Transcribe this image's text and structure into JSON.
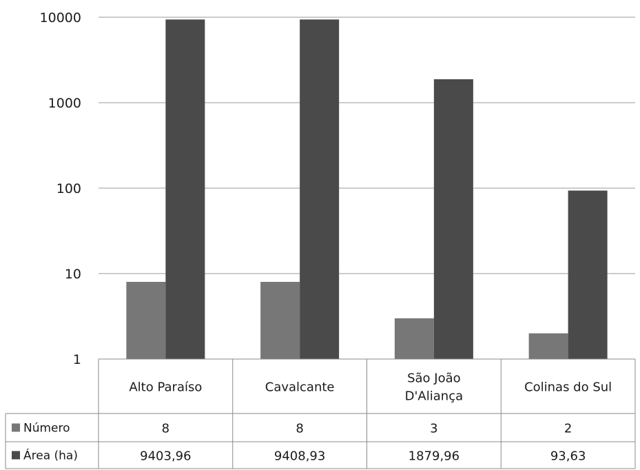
{
  "chart_data": {
    "type": "bar",
    "y_scale": "log",
    "ylim": [
      1,
      10000
    ],
    "yticks": [
      "1",
      "10",
      "100",
      "1000",
      "10000"
    ],
    "grid": true,
    "categories": [
      [
        "Alto Paraíso"
      ],
      [
        "Cavalcante"
      ],
      [
        "São João",
        "D'Aliança"
      ],
      [
        "Colinas do Sul"
      ]
    ],
    "series": [
      {
        "name": "Número",
        "color": "#777777",
        "values": [
          8,
          8,
          3,
          2
        ],
        "labels": [
          "8",
          "8",
          "3",
          "2"
        ]
      },
      {
        "name": "Área (ha)",
        "color": "#4a4a4a",
        "values": [
          9403.96,
          9408.93,
          1879.96,
          93.63
        ],
        "labels": [
          "9403,96",
          "9408,93",
          "1879,96",
          "93,63"
        ]
      }
    ],
    "legend": "data-table"
  }
}
